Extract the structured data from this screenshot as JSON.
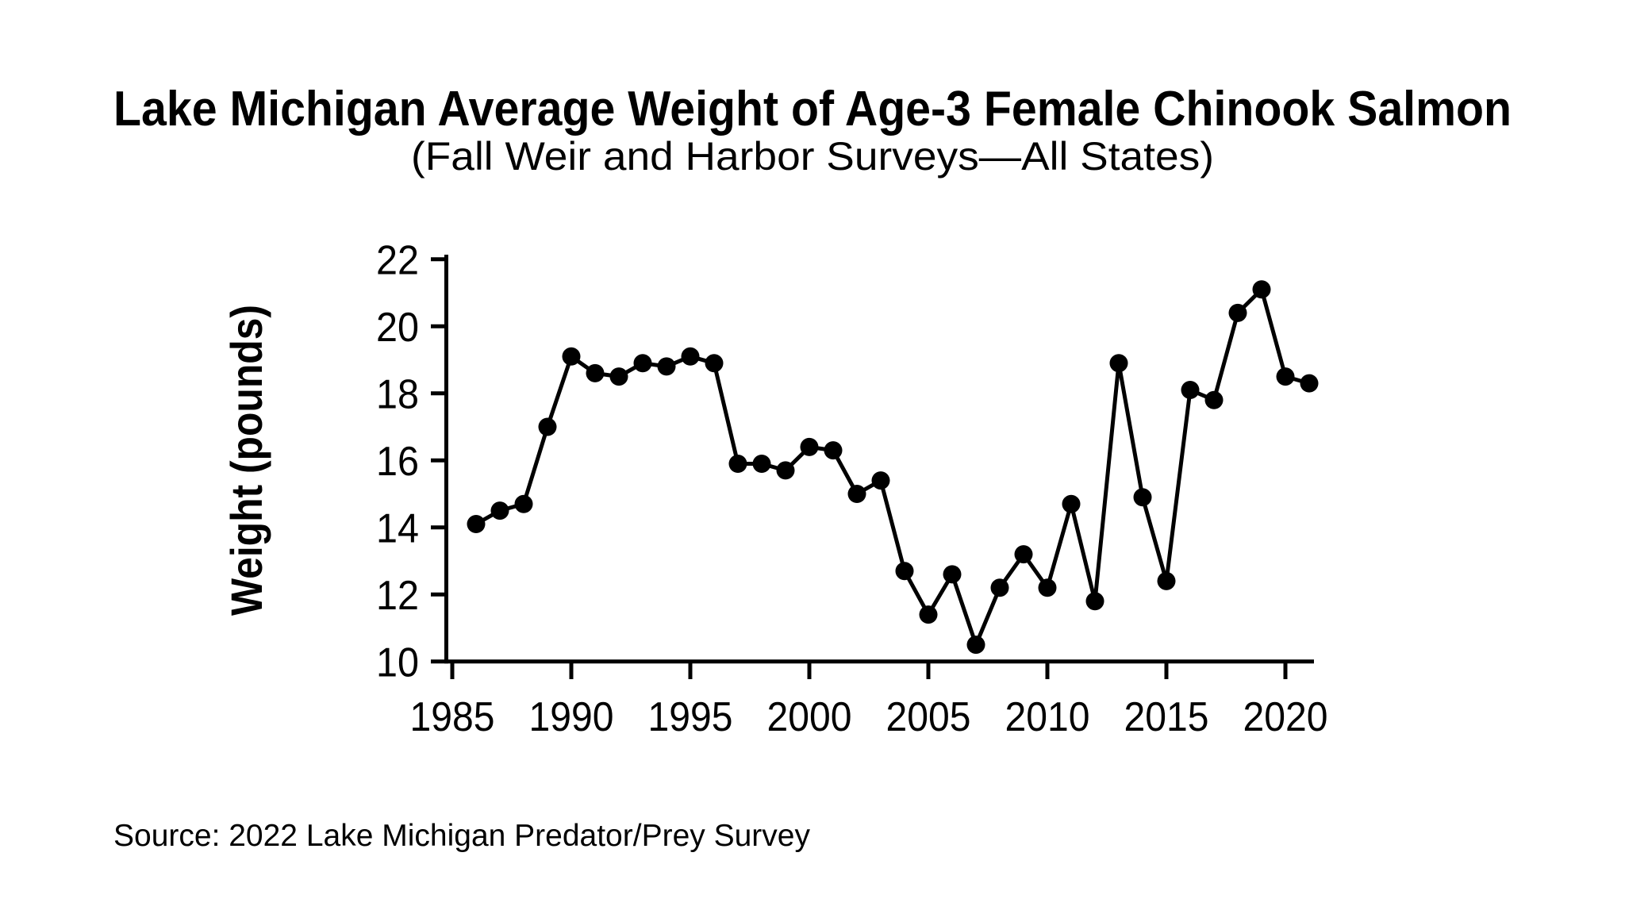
{
  "chart_data": {
    "type": "line",
    "title": "Lake Michigan Average Weight of Age-3 Female Chinook Salmon",
    "subtitle": "(Fall Weir and Harbor Surveys—All States)",
    "ylabel": "Weight (pounds)",
    "xlabel": "",
    "source_note": "Source: 2022 Lake Michigan Predator/Prey Survey",
    "x": [
      1986,
      1987,
      1988,
      1989,
      1990,
      1991,
      1992,
      1993,
      1994,
      1995,
      1996,
      1997,
      1998,
      1999,
      2000,
      2001,
      2002,
      2003,
      2004,
      2005,
      2006,
      2007,
      2008,
      2009,
      2010,
      2011,
      2012,
      2013,
      2014,
      2015,
      2016,
      2017,
      2018,
      2019,
      2020,
      2021
    ],
    "values": [
      14.1,
      14.5,
      14.7,
      17.0,
      19.1,
      18.6,
      18.5,
      18.9,
      18.8,
      19.1,
      18.9,
      15.9,
      15.9,
      15.7,
      16.4,
      16.3,
      15.0,
      15.4,
      12.7,
      11.4,
      12.6,
      10.5,
      12.2,
      13.2,
      12.2,
      14.7,
      11.8,
      18.9,
      14.9,
      12.4,
      18.1,
      17.8,
      20.4,
      21.1,
      18.5,
      18.3
    ],
    "ylim": [
      10,
      22
    ],
    "xlim": [
      1985,
      2021.5
    ],
    "yticks": [
      10,
      12,
      14,
      16,
      18,
      20,
      22
    ],
    "xticks": [
      1985,
      1990,
      1995,
      2000,
      2005,
      2010,
      2015,
      2020
    ],
    "grid": false,
    "legend_position": "none",
    "marker": "filled-circle",
    "line_color": "#000000",
    "marker_color": "#000000",
    "background_color": "#ffffff"
  }
}
